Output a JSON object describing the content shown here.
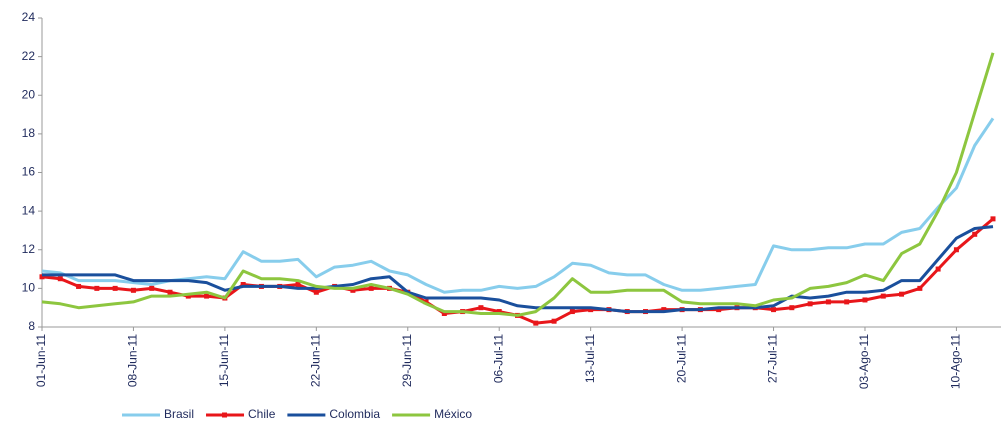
{
  "chart_data": {
    "type": "line",
    "categories": [
      "01-Jun-11",
      null,
      null,
      null,
      null,
      "08-Jun-11",
      null,
      null,
      null,
      null,
      "15-Jun-11",
      null,
      null,
      null,
      null,
      "22-Jun-11",
      null,
      null,
      null,
      null,
      "29-Jun-11",
      null,
      null,
      null,
      null,
      "06-Jul-11",
      null,
      null,
      null,
      null,
      "13-Jul-11",
      null,
      null,
      null,
      null,
      "20-Jul-11",
      null,
      null,
      null,
      null,
      "27-Jul-11",
      null,
      null,
      null,
      null,
      "03-Ago-11",
      null,
      null,
      null,
      null,
      "10-Ago-11",
      null,
      null
    ],
    "series": [
      {
        "name": "Brasil",
        "color": "#87cdec",
        "values": [
          10.9,
          10.8,
          10.4,
          10.4,
          10.4,
          10.3,
          10.2,
          10.4,
          10.5,
          10.6,
          10.5,
          11.9,
          11.4,
          11.4,
          11.5,
          10.6,
          11.1,
          11.2,
          11.4,
          10.9,
          10.7,
          10.2,
          9.8,
          9.9,
          9.9,
          10.1,
          10.0,
          10.1,
          10.6,
          11.3,
          11.2,
          10.8,
          10.7,
          10.7,
          10.2,
          9.9,
          9.9,
          10.0,
          10.1,
          10.2,
          12.2,
          12.0,
          12.0,
          12.1,
          12.1,
          12.3,
          12.3,
          12.9,
          13.1,
          14.2,
          15.2,
          17.4,
          18.8
        ]
      },
      {
        "name": "Chile",
        "color": "#e8161a",
        "marker": "square",
        "values": [
          10.6,
          10.5,
          10.1,
          10.0,
          10.0,
          9.9,
          10.0,
          9.8,
          9.6,
          9.6,
          9.5,
          10.2,
          10.1,
          10.1,
          10.2,
          9.8,
          10.1,
          9.9,
          10.0,
          10.0,
          9.8,
          9.3,
          8.7,
          8.8,
          9.0,
          8.8,
          8.6,
          8.2,
          8.3,
          8.8,
          8.9,
          8.9,
          8.8,
          8.8,
          8.9,
          8.9,
          8.9,
          8.9,
          9.0,
          9.0,
          8.9,
          9.0,
          9.2,
          9.3,
          9.3,
          9.4,
          9.6,
          9.7,
          10.0,
          11.0,
          12.0,
          12.8,
          13.6
        ]
      },
      {
        "name": "Colombia",
        "color": "#1a4f9c",
        "values": [
          10.7,
          10.7,
          10.7,
          10.7,
          10.7,
          10.4,
          10.4,
          10.4,
          10.4,
          10.3,
          9.9,
          10.1,
          10.1,
          10.1,
          10.0,
          10.0,
          10.1,
          10.2,
          10.5,
          10.6,
          9.8,
          9.5,
          9.5,
          9.5,
          9.5,
          9.4,
          9.1,
          9.0,
          9.0,
          9.0,
          9.0,
          8.9,
          8.8,
          8.8,
          8.8,
          8.9,
          8.9,
          9.0,
          9.0,
          9.0,
          9.1,
          9.6,
          9.5,
          9.6,
          9.8,
          9.8,
          9.9,
          10.4,
          10.4,
          11.5,
          12.6,
          13.1,
          13.2
        ]
      },
      {
        "name": "México",
        "color": "#8dc63f",
        "values": [
          9.3,
          9.2,
          9.0,
          9.1,
          9.2,
          9.3,
          9.6,
          9.6,
          9.7,
          9.8,
          9.5,
          10.9,
          10.5,
          10.5,
          10.4,
          10.1,
          10.0,
          10.0,
          10.2,
          10.0,
          9.7,
          9.2,
          8.8,
          8.8,
          8.7,
          8.7,
          8.6,
          8.8,
          9.5,
          10.5,
          9.8,
          9.8,
          9.9,
          9.9,
          9.9,
          9.3,
          9.2,
          9.2,
          9.2,
          9.1,
          9.4,
          9.5,
          10.0,
          10.1,
          10.3,
          10.7,
          10.4,
          11.8,
          12.3,
          14.0,
          16.0,
          19.1,
          22.2
        ]
      }
    ],
    "ylim": [
      8,
      24
    ],
    "yticks": [
      8,
      10,
      12,
      14,
      16,
      18,
      20,
      22,
      24
    ],
    "grid": false,
    "legend": "bottom"
  }
}
